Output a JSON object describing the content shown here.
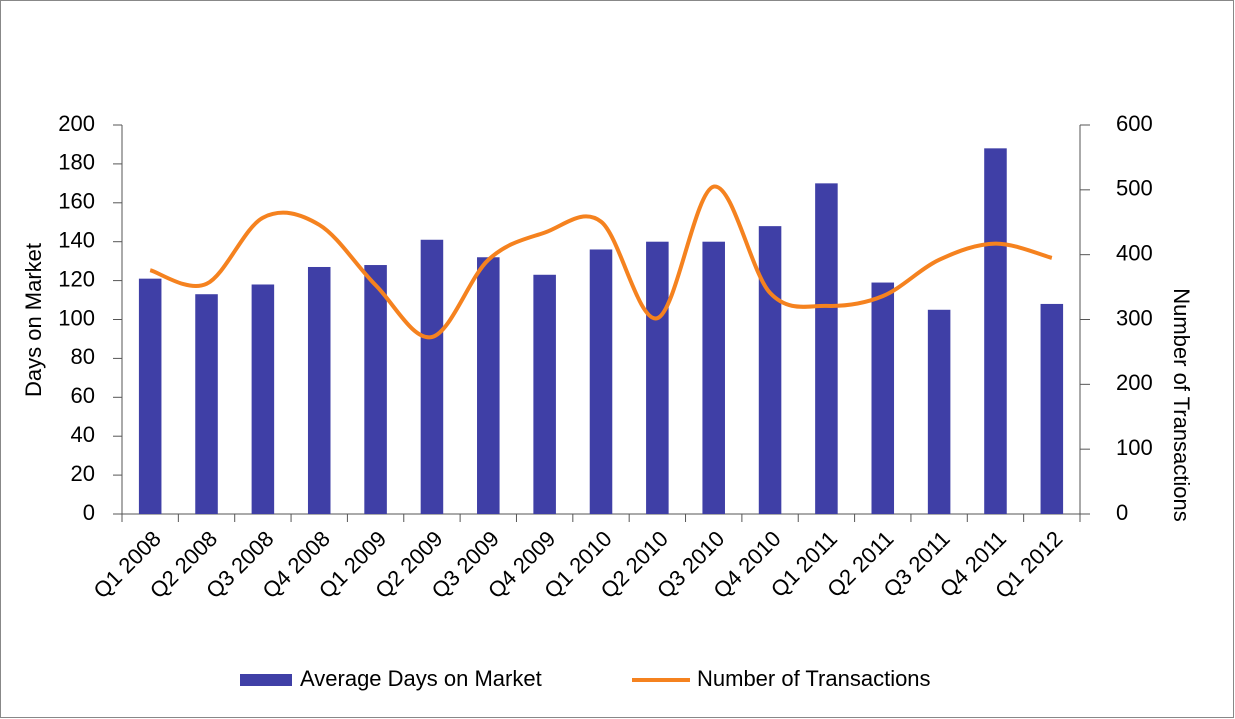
{
  "chart_data": {
    "type": "bar-line",
    "categories": [
      "Q1 2008",
      "Q2 2008",
      "Q3 2008",
      "Q4 2008",
      "Q1 2009",
      "Q2 2009",
      "Q3 2009",
      "Q4 2009",
      "Q1 2010",
      "Q2 2010",
      "Q3 2010",
      "Q4 2010",
      "Q1 2011",
      "Q2 2011",
      "Q3 2011",
      "Q4 2011",
      "Q1 2012"
    ],
    "series": [
      {
        "name": "Average Days on Market",
        "type": "bar",
        "color": "#3f3fa6",
        "axis": "y",
        "values": [
          121,
          113,
          118,
          127,
          128,
          141,
          132,
          123,
          136,
          140,
          140,
          148,
          170,
          119,
          105,
          188,
          108
        ]
      },
      {
        "name": "Number of Transactions",
        "type": "line",
        "color": "#f5821f",
        "axis": "y2",
        "values": [
          376,
          355,
          457,
          446,
          353,
          273,
          392,
          434,
          451,
          302,
          505,
          341,
          321,
          336,
          392,
          417,
          395
        ]
      }
    ],
    "y_label": "Days on Market",
    "y2_label": "Number of Transactions",
    "ylim": [
      0,
      200
    ],
    "yticks": [
      0,
      20,
      40,
      60,
      80,
      100,
      120,
      140,
      160,
      180,
      200
    ],
    "y2lim": [
      0,
      600
    ],
    "y2ticks": [
      0,
      100,
      200,
      300,
      400,
      500,
      600
    ],
    "legend": "bottom"
  }
}
